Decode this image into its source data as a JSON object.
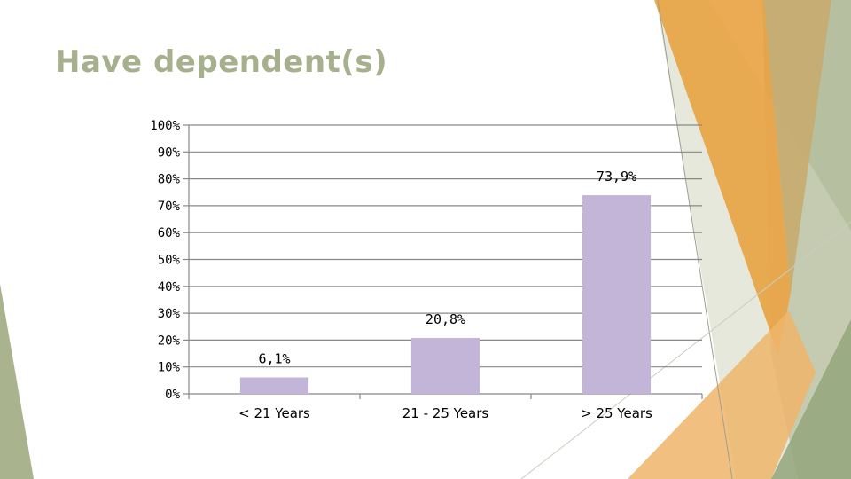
{
  "slide": {
    "title": "Have dependent(s)"
  },
  "colors": {
    "title": "#a6b08c",
    "bar": "#c3b5d8",
    "grid": "#888888",
    "accent_orange": "#e8a445",
    "accent_green": "#a9b48e"
  },
  "chart_data": {
    "type": "bar",
    "title": "",
    "categories": [
      "< 21 Years",
      "21 - 25 Years",
      "> 25 Years"
    ],
    "values": [
      6.1,
      20.8,
      73.9
    ],
    "data_labels": [
      "6,1%",
      "20,8%",
      "73,9%"
    ],
    "ylim": [
      0,
      100
    ],
    "yticks": [
      0,
      10,
      20,
      30,
      40,
      50,
      60,
      70,
      80,
      90,
      100
    ],
    "ytick_labels": [
      "0%",
      "10%",
      "20%",
      "30%",
      "40%",
      "50%",
      "60%",
      "70%",
      "80%",
      "90%",
      "100%"
    ],
    "xlabel": "",
    "ylabel": "",
    "grid": true,
    "legend": "none"
  }
}
